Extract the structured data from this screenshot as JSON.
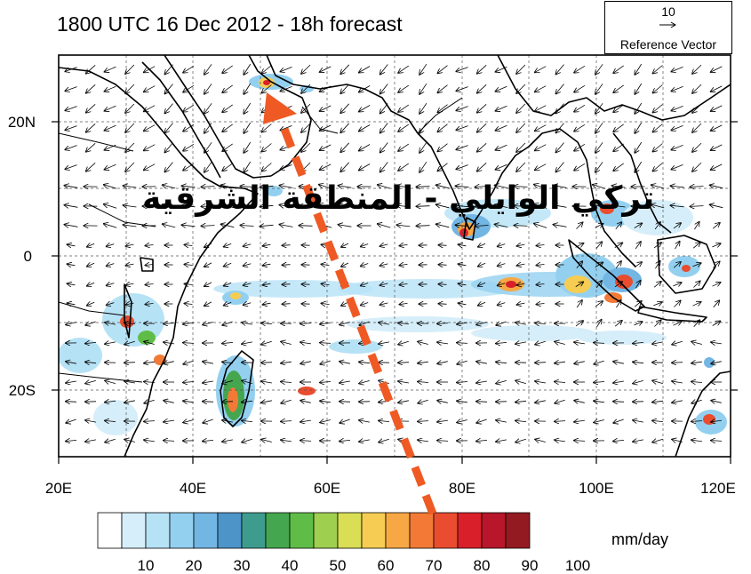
{
  "title": "1800 UTC 16 Dec 2012 - 18h forecast",
  "reference_vector": {
    "value": "10",
    "caption": "Reference Vector"
  },
  "overlay_text": "تركي الوايلي - المنطقة الشرقية",
  "map": {
    "lon_range": [
      20,
      120
    ],
    "lat_range": [
      -30,
      30
    ],
    "x_ticks": [
      "20E",
      "40E",
      "60E",
      "80E",
      "100E",
      "120E"
    ],
    "y_ticks": [
      "20N",
      "0",
      "20S"
    ],
    "grid": true
  },
  "colorbar": {
    "unit": "mm/day",
    "labels": [
      "10",
      "20",
      "30",
      "40",
      "50",
      "60",
      "70",
      "80",
      "90",
      "100"
    ],
    "colors": [
      "#ffffff",
      "#d6eef9",
      "#b6e2f6",
      "#93d0f0",
      "#72b6e4",
      "#4d94c8",
      "#3e9c8e",
      "#45a650",
      "#5fbd47",
      "#9fcf4f",
      "#d9de55",
      "#f6cd52",
      "#f7a844",
      "#f27a36",
      "#e94c2e",
      "#d9202a",
      "#b8162a",
      "#941a22"
    ]
  },
  "annotation": {
    "type": "dashed-arrow",
    "color": "#ef5a24",
    "from": "colorbar ~75 mm/day",
    "to": "Persian Gulf precipitation maximum"
  }
}
